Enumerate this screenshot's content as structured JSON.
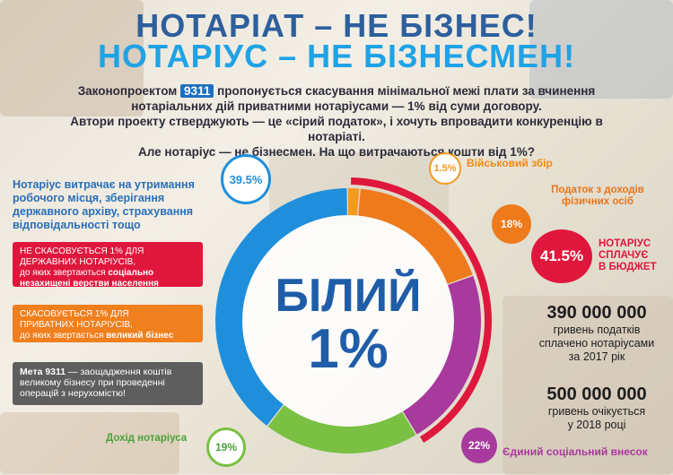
{
  "title": {
    "line1": "НОТАРІАТ – НЕ БІЗНЕС!",
    "line2": "НОТАРІУС – НЕ БІЗНЕСМЕН!"
  },
  "intro": {
    "line1_pre": "Законопроектом ",
    "bill_number": "9311",
    "line1_post": " пропонується скасування мінімальної межі плати за вчинення",
    "line2": "нотаріальних дій приватними нотаріусами — 1% від суми договору.",
    "line3": "Автори проекту стверджують — це «сірий податок», і хочуть впровадити конкуренцію в нотаріаті.",
    "line4": "Але нотаріус — не бізнесмен. На що витрачаються кошти від 1%?"
  },
  "left_text": "Нотаріус витрачає на утримання робочого місця, зберігання державного архіву, страхування відповідальності тощо",
  "boxes": {
    "red": {
      "line1": "НЕ СКАСОВУЄТЬСЯ 1% ДЛЯ",
      "line2": "ДЕРЖАВНИХ НОТАРІУСІВ,",
      "line3_pre": "до яких звертаються ",
      "line3_bold": "соціально",
      "line4_bold": "незахищені верстви населення"
    },
    "orange": {
      "line1": "СКАСОВУЄТЬСЯ 1% ДЛЯ",
      "line2": "ПРИВАТНИХ НОТАРІУСІВ,",
      "line3_pre": "до яких звертається ",
      "line3_bold": "великий бізнес"
    },
    "gray": {
      "bold": "Мета 9311",
      "text": " — заощадження коштів великому бізнесу при проведенні операцій з нерухомістю!"
    }
  },
  "center": {
    "line1": "БІЛИЙ",
    "line2": "1%"
  },
  "segments": [
    {
      "value": "39.5%",
      "share": 39.5,
      "color": "#1f8fdc",
      "label": ""
    },
    {
      "value": "1.5%",
      "share": 1.5,
      "color": "#f39a1f",
      "label": "Військовий збір"
    },
    {
      "value": "18%",
      "share": 18,
      "color": "#ee7a1c",
      "label": "Податок з доходів фізичних осіб"
    },
    {
      "value": "22%",
      "share": 22,
      "color": "#a73a9c",
      "label": "Єдиний соціальний внесок"
    },
    {
      "value": "19%",
      "share": 19,
      "color": "#79c043",
      "label": "Дохід нотаріуса"
    }
  ],
  "budget": {
    "value": "41.5%",
    "label_line1": "НОТАРІУС",
    "label_line2": "СПЛАЧУЄ",
    "label_line3": "В БЮДЖЕТ",
    "color": "#e0173c"
  },
  "stats": [
    {
      "number": "390 000 000",
      "line1": "гривень податків",
      "line2": "сплачено нотаріусами",
      "line3": "за 2017 рік"
    },
    {
      "number": "500 000 000",
      "line1": "гривень очікується",
      "line2": "у 2018 році"
    }
  ]
}
